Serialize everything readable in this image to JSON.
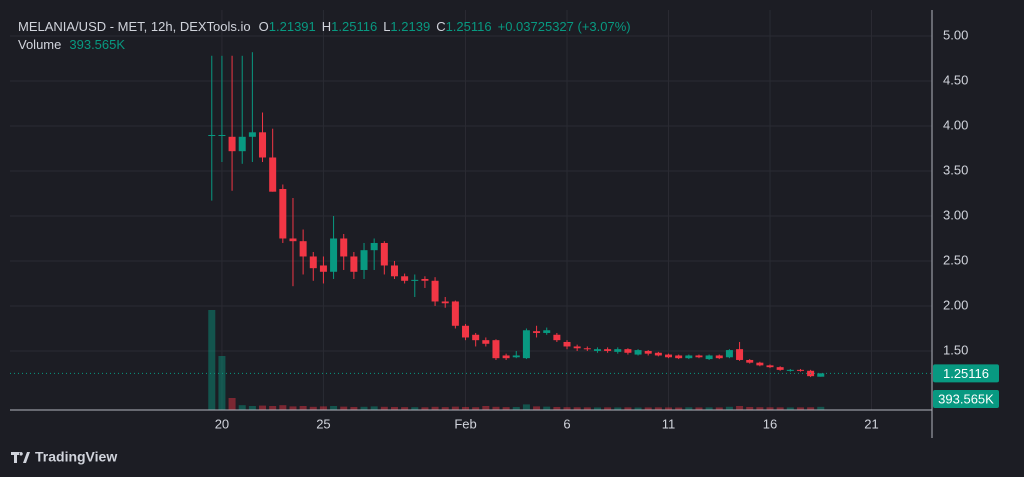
{
  "chart_data": {
    "type": "candlestick",
    "title": "MELANIA/USD - MET, 12h, DEXTools.io",
    "legend": [
      {
        "label": "O",
        "value": "1.21391"
      },
      {
        "label": "H",
        "value": "1.25116"
      },
      {
        "label": "L",
        "value": "1.2139"
      },
      {
        "label": "C",
        "value": "1.25116"
      }
    ],
    "change": "+0.03725327 (+3.07%)",
    "volume_label": "Volume",
    "volume_value": "393.565K",
    "branding": "TradingView",
    "up_color": "#089981",
    "down_color": "#f23645",
    "grid": true,
    "x": [
      19.5,
      20,
      20.5,
      21,
      21.5,
      22,
      22.5,
      23,
      23.5,
      24,
      24.5,
      25,
      25.5,
      26,
      26.5,
      27,
      27.5,
      28,
      28.5,
      29,
      29.5,
      30,
      30.5,
      31,
      31.5,
      32,
      32.5,
      33,
      33.5,
      34,
      34.5,
      35,
      35.5,
      36,
      36.5,
      37,
      37.5,
      38,
      38.5,
      39,
      39.5,
      40,
      40.5,
      41,
      41.5,
      42,
      42.5,
      43,
      43.5,
      44,
      44.5,
      45,
      45.5,
      46,
      46.5,
      47,
      47.5,
      48,
      48.5,
      49,
      49.5
    ],
    "open": [
      3.89,
      3.9,
      3.88,
      3.72,
      3.88,
      3.93,
      3.65,
      3.3,
      2.75,
      2.72,
      2.55,
      2.45,
      2.38,
      2.75,
      2.55,
      2.4,
      2.62,
      2.7,
      2.45,
      2.33,
      2.28,
      2.3,
      2.28,
      2.05,
      2.05,
      1.78,
      1.68,
      1.62,
      1.62,
      1.45,
      1.43,
      1.42,
      1.72,
      1.7,
      1.68,
      1.6,
      1.55,
      1.53,
      1.5,
      1.52,
      1.49,
      1.52,
      1.46,
      1.5,
      1.48,
      1.46,
      1.45,
      1.42,
      1.45,
      1.41,
      1.45,
      1.43,
      1.52,
      1.4,
      1.37,
      1.34,
      1.32,
      1.28,
      1.29,
      1.28,
      1.21391
    ],
    "high": [
      4.78,
      4.78,
      4.78,
      4.78,
      4.82,
      4.15,
      3.97,
      3.35,
      3.2,
      2.85,
      2.6,
      2.55,
      3.0,
      2.8,
      2.6,
      2.7,
      2.75,
      2.72,
      2.5,
      2.36,
      2.35,
      2.33,
      2.32,
      2.1,
      2.06,
      1.8,
      1.7,
      1.65,
      1.63,
      1.47,
      1.5,
      1.75,
      1.78,
      1.76,
      1.7,
      1.62,
      1.57,
      1.55,
      1.54,
      1.54,
      1.54,
      1.53,
      1.52,
      1.51,
      1.49,
      1.47,
      1.46,
      1.46,
      1.46,
      1.46,
      1.46,
      1.52,
      1.6,
      1.41,
      1.38,
      1.35,
      1.33,
      1.3,
      1.3,
      1.29,
      1.25116
    ],
    "low": [
      3.17,
      3.6,
      3.28,
      3.58,
      3.6,
      3.6,
      3.27,
      2.7,
      2.22,
      2.35,
      2.28,
      2.25,
      2.3,
      2.4,
      2.3,
      2.3,
      2.4,
      2.35,
      2.3,
      2.25,
      2.1,
      2.2,
      2.0,
      1.98,
      1.75,
      1.62,
      1.55,
      1.55,
      1.4,
      1.4,
      1.42,
      1.41,
      1.65,
      1.68,
      1.6,
      1.52,
      1.5,
      1.5,
      1.48,
      1.48,
      1.47,
      1.46,
      1.45,
      1.45,
      1.44,
      1.42,
      1.41,
      1.41,
      1.42,
      1.4,
      1.41,
      1.42,
      1.39,
      1.36,
      1.33,
      1.31,
      1.28,
      1.27,
      1.27,
      1.21,
      1.2139
    ],
    "close": [
      3.9,
      3.9,
      3.72,
      3.88,
      3.93,
      3.65,
      3.27,
      2.75,
      2.72,
      2.55,
      2.42,
      2.38,
      2.75,
      2.55,
      2.38,
      2.62,
      2.7,
      2.45,
      2.33,
      2.28,
      2.29,
      2.28,
      2.05,
      2.03,
      1.78,
      1.65,
      1.62,
      1.58,
      1.42,
      1.42,
      1.45,
      1.73,
      1.7,
      1.73,
      1.62,
      1.55,
      1.53,
      1.52,
      1.52,
      1.5,
      1.52,
      1.48,
      1.51,
      1.47,
      1.45,
      1.43,
      1.42,
      1.45,
      1.43,
      1.45,
      1.42,
      1.51,
      1.4,
      1.37,
      1.34,
      1.32,
      1.29,
      1.29,
      1.28,
      1.22,
      1.25116
    ],
    "volume": [
      12500000,
      6750000,
      1500000,
      600000,
      500000,
      550000,
      500000,
      600000,
      450000,
      500000,
      400000,
      450000,
      500000,
      420000,
      380000,
      400000,
      450000,
      400000,
      380000,
      360000,
      350000,
      340000,
      400000,
      360000,
      420000,
      380000,
      350000,
      500000,
      400000,
      360000,
      380000,
      700000,
      450000,
      420000,
      380000,
      350000,
      340000,
      330000,
      320000,
      330000,
      320000,
      330000,
      310000,
      320000,
      330000,
      320000,
      310000,
      340000,
      320000,
      330000,
      320000,
      400000,
      500000,
      380000,
      350000,
      340000,
      330000,
      320000,
      330000,
      340000,
      393565
    ],
    "xlim": [
      9.56,
      54.98
    ],
    "xticks": [
      20,
      25,
      {
        "value": 32,
        "label": "Feb"
      },
      {
        "value": 37,
        "label": "6"
      },
      {
        "value": 42,
        "label": "11"
      },
      {
        "value": 47,
        "label": "16"
      },
      {
        "value": 52,
        "label": "21"
      }
    ],
    "ylim": [
      0.844,
      5.289
    ],
    "yticks": [
      {
        "value": 1.5,
        "label": "1.50"
      },
      {
        "value": 2,
        "label": "2.00"
      },
      {
        "value": 2.5,
        "label": "2.50"
      },
      {
        "value": 3,
        "label": "3.00"
      },
      {
        "value": 3.5,
        "label": "3.50"
      },
      {
        "value": 4,
        "label": "4.00"
      },
      {
        "value": 4.5,
        "label": "4.50"
      },
      {
        "value": 5,
        "label": "5.00"
      }
    ],
    "y2lim": [
      0,
      50000000
    ]
  }
}
